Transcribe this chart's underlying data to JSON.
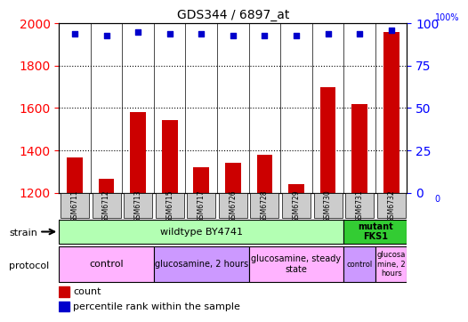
{
  "title": "GDS344 / 6897_at",
  "samples": [
    "GSM6711",
    "GSM6712",
    "GSM6713",
    "GSM6715",
    "GSM6717",
    "GSM6726",
    "GSM6728",
    "GSM6729",
    "GSM6730",
    "GSM6731",
    "GSM6732"
  ],
  "counts": [
    1365,
    1265,
    1580,
    1545,
    1320,
    1340,
    1380,
    1240,
    1700,
    1620,
    1960
  ],
  "percentiles": [
    94,
    93,
    95,
    94,
    94,
    93,
    93,
    93,
    94,
    94,
    96
  ],
  "ylim_left": [
    1200,
    2000
  ],
  "ylim_right": [
    0,
    100
  ],
  "yticks_left": [
    1200,
    1400,
    1600,
    1800,
    2000
  ],
  "yticks_right": [
    0,
    25,
    50,
    75,
    100
  ],
  "bar_color": "#cc0000",
  "dot_color": "#0000cc",
  "strain_wildtype": "wildtype BY4741",
  "strain_mutant": "mutant\nFKS1",
  "strain_wildtype_color": "#b3ffb3",
  "strain_mutant_color": "#33cc33",
  "protocol_groups": [
    {
      "label": "control",
      "samples": [
        "GSM6711",
        "GSM6712",
        "GSM6713"
      ],
      "color": "#ffb3ff"
    },
    {
      "label": "glucosamine, 2 hours",
      "samples": [
        "GSM6715",
        "GSM6717",
        "GSM6726"
      ],
      "color": "#cc99cc"
    },
    {
      "label": "glucosamine, steady\nstate",
      "samples": [
        "GSM6728",
        "GSM6729",
        "GSM6730"
      ],
      "color": "#ffb3ff"
    },
    {
      "label": "control",
      "samples": [
        "GSM6731"
      ],
      "color": "#cc99cc"
    },
    {
      "label": "glucosa\nmine, 2\nhours",
      "samples": [
        "GSM6732"
      ],
      "color": "#ffb3ff"
    }
  ],
  "legend_count_label": "count",
  "legend_percentile_label": "percentile rank within the sample",
  "strain_label": "strain",
  "protocol_label": "protocol",
  "wildtype_count": 9,
  "mutant_count": 2
}
